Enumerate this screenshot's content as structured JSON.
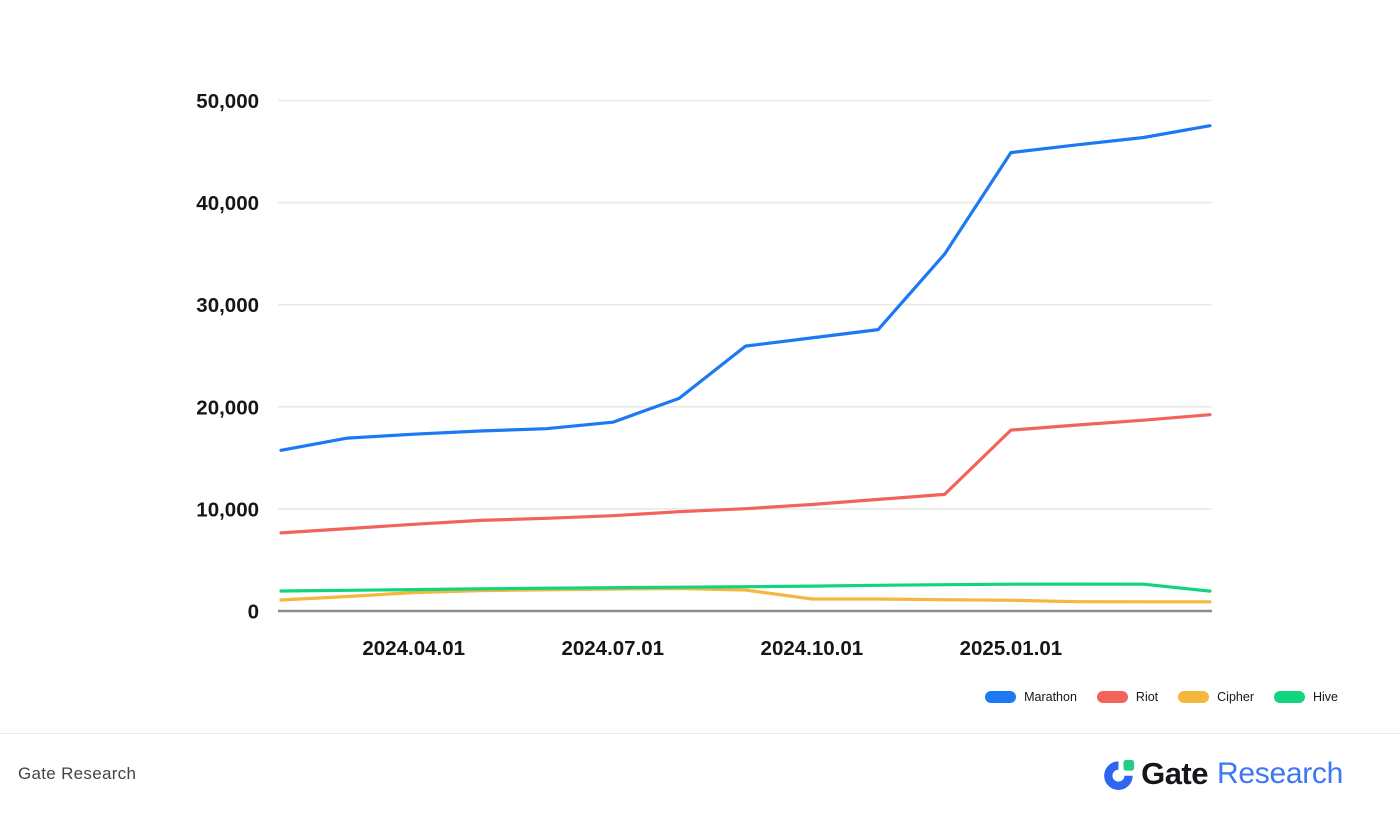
{
  "chart_data": {
    "type": "line",
    "title": "",
    "xlabel": "",
    "ylabel": "",
    "x": [
      "2024.02",
      "2024.03",
      "2024.04",
      "2024.05",
      "2024.06",
      "2024.07",
      "2024.08",
      "2024.09",
      "2024.10",
      "2024.11",
      "2024.12",
      "2025.01",
      "2025.02",
      "2025.03",
      "2025.04"
    ],
    "xticks": [
      {
        "index": 2,
        "label": "2024.04.01"
      },
      {
        "index": 5,
        "label": "2024.07.01"
      },
      {
        "index": 8,
        "label": "2024.10.01"
      },
      {
        "index": 11,
        "label": "2025.01.01"
      }
    ],
    "series": [
      {
        "name": "Marathon",
        "color": "#1c79f3",
        "values": [
          15741,
          16930,
          17320,
          17631,
          17857,
          18488,
          20818,
          25945,
          26747,
          27562,
          34959,
          44893,
          45661,
          46374,
          47531
        ]
      },
      {
        "name": "Riot",
        "color": "#f2635c",
        "values": [
          7648,
          8067,
          8490,
          8872,
          9084,
          9334,
          9727,
          10019,
          10427,
          10928,
          11425,
          17722,
          18221,
          18692,
          19223
        ]
      },
      {
        "name": "Cipher",
        "color": "#f5b73e",
        "values": [
          1080,
          1420,
          1800,
          2000,
          2080,
          2150,
          2200,
          2060,
          1180,
          1180,
          1110,
          1050,
          910,
          900,
          900
        ]
      },
      {
        "name": "Hive",
        "color": "#12d47e",
        "values": [
          1960,
          2030,
          2100,
          2170,
          2230,
          2280,
          2330,
          2380,
          2440,
          2520,
          2580,
          2620,
          2630,
          2620,
          1950
        ]
      }
    ],
    "ylim": [
      0,
      50000
    ],
    "yticks": [
      0,
      10000,
      20000,
      30000,
      40000,
      50000
    ],
    "grid": "horizontal",
    "legend_position": "bottom-right"
  },
  "colors": {
    "grid": "#e9e9e9",
    "axis": "#8c8c8c",
    "tick_label": "#161616",
    "background": "#ffffff",
    "logo_blue": "#2f66f0",
    "logo_green": "#20ce84",
    "research_blue": "#3d77f3"
  },
  "footer": {
    "left_text": "Gate Research",
    "logo_gate": "Gate",
    "logo_research": "Research"
  }
}
